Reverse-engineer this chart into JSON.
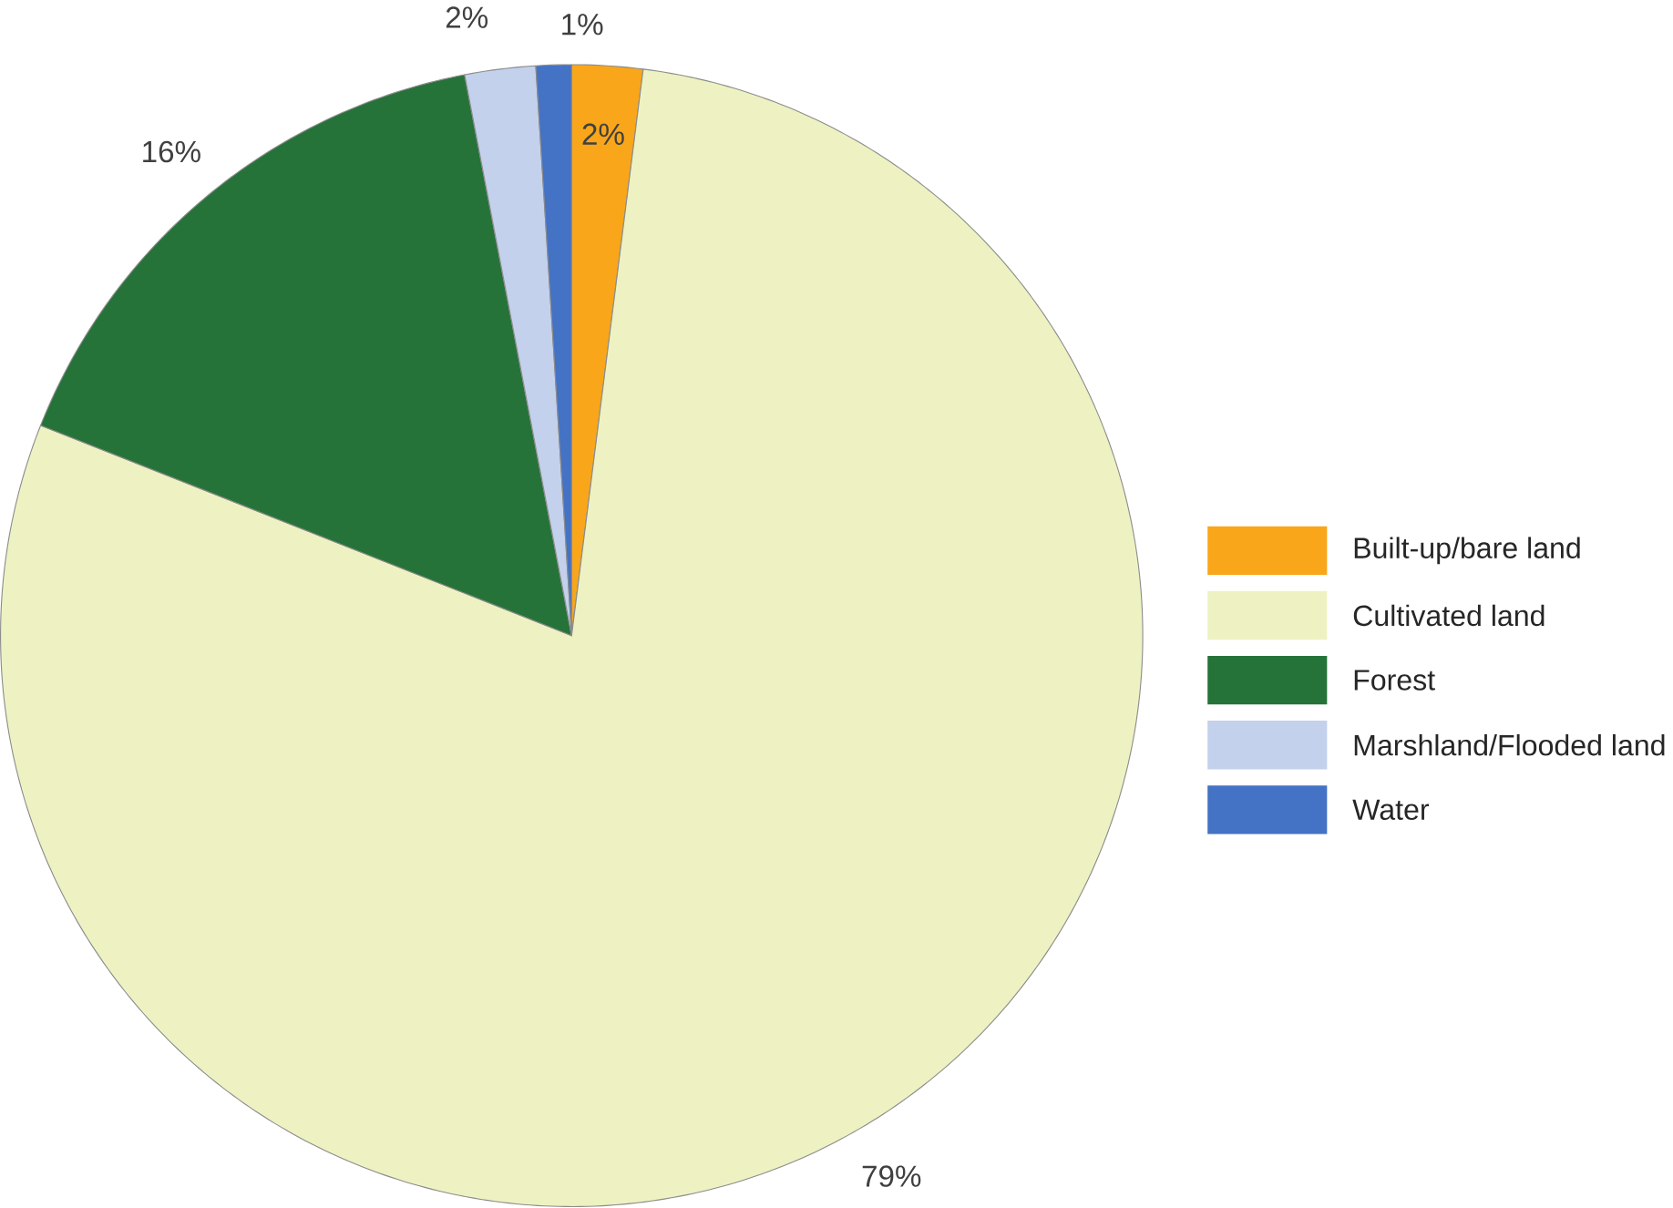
{
  "chart_data": {
    "type": "pie",
    "categories": [
      "Built-up/bare land",
      "Cultivated land",
      "Forest",
      "Marshland/Flooded land",
      "Water"
    ],
    "values": [
      2,
      79,
      16,
      2,
      1
    ],
    "colors": [
      "#f9a61a",
      "#eef2c2",
      "#267339",
      "#c3d1ec",
      "#4472c4"
    ],
    "value_labels": [
      "2%",
      "79%",
      "16%",
      "2%",
      "1%"
    ],
    "legend": "right"
  }
}
